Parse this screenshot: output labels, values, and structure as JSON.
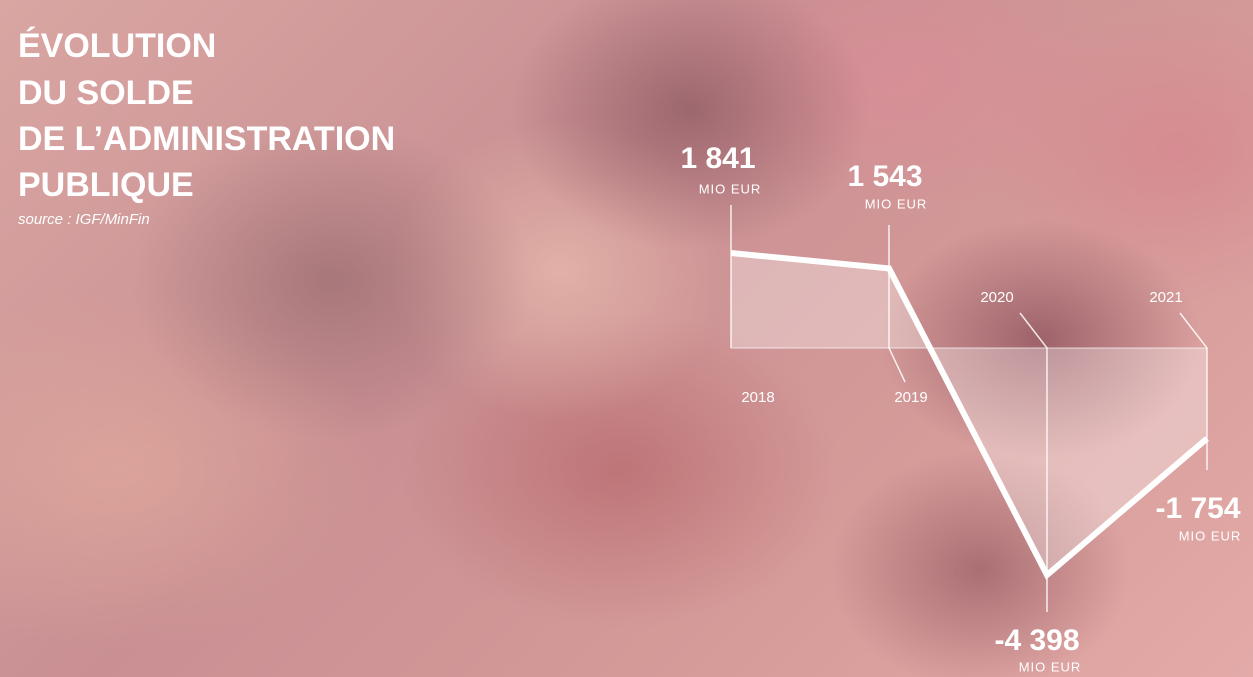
{
  "chart_data": {
    "type": "line",
    "title_lines": [
      "ÉVOLUTION",
      "DU SOLDE",
      "DE L’ADMINISTRATION",
      "PUBLIQUE"
    ],
    "source": "source : IGF/MinFin",
    "unit": "MIO EUR",
    "categories": [
      "2018",
      "2019",
      "2020",
      "2021"
    ],
    "values": [
      1841,
      1543,
      -4398,
      -1754
    ],
    "value_labels": [
      "1 841",
      "1 543",
      "-4 398",
      "-1 754"
    ],
    "color": "#ffffff"
  }
}
